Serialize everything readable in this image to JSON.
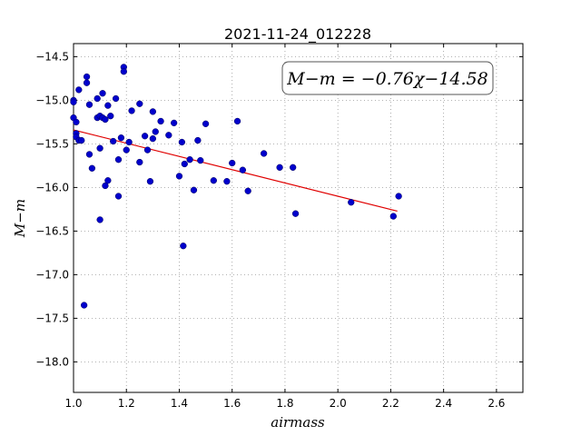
{
  "chart_data": {
    "type": "scatter",
    "title": "2021-11-24_012228",
    "xlabel": "airmass",
    "ylabel": "M−m",
    "xlim": [
      1.0,
      2.7
    ],
    "ylim": [
      -18.35,
      -14.35
    ],
    "x_ticks": [
      1.0,
      1.2,
      1.4,
      1.6,
      1.8,
      2.0,
      2.2,
      2.4,
      2.6
    ],
    "x_tick_labels": [
      "1.0",
      "1.2",
      "1.4",
      "1.6",
      "1.8",
      "2.0",
      "2.2",
      "2.4",
      "2.6"
    ],
    "y_ticks": [
      -14.5,
      -15.0,
      -15.5,
      -16.0,
      -16.5,
      -17.0,
      -17.5,
      -18.0
    ],
    "y_tick_labels": [
      "−14.5",
      "−15.0",
      "−15.5",
      "−16.0",
      "−16.5",
      "−17.0",
      "−17.5",
      "−18.0"
    ],
    "grid": true,
    "annotation": "M−m = −0.76χ−14.58",
    "fit_line": {
      "slope": -0.76,
      "intercept": -14.58,
      "x_range": [
        1.0,
        2.225
      ],
      "color": "#e00000"
    },
    "point_color": "#0000cc",
    "points": [
      [
        1.0,
        -15.0
      ],
      [
        1.0,
        -15.02
      ],
      [
        1.0,
        -15.2
      ],
      [
        1.01,
        -15.25
      ],
      [
        1.01,
        -15.38
      ],
      [
        1.01,
        -15.42
      ],
      [
        1.02,
        -14.88
      ],
      [
        1.02,
        -15.46
      ],
      [
        1.03,
        -15.46
      ],
      [
        1.04,
        -17.35
      ],
      [
        1.05,
        -14.8
      ],
      [
        1.05,
        -14.73
      ],
      [
        1.06,
        -15.05
      ],
      [
        1.06,
        -15.62
      ],
      [
        1.07,
        -15.78
      ],
      [
        1.09,
        -14.98
      ],
      [
        1.09,
        -15.2
      ],
      [
        1.1,
        -15.18
      ],
      [
        1.1,
        -15.55
      ],
      [
        1.1,
        -16.37
      ],
      [
        1.11,
        -14.92
      ],
      [
        1.11,
        -15.2
      ],
      [
        1.12,
        -15.22
      ],
      [
        1.12,
        -15.98
      ],
      [
        1.13,
        -15.92
      ],
      [
        1.13,
        -15.06
      ],
      [
        1.14,
        -15.18
      ],
      [
        1.15,
        -15.47
      ],
      [
        1.16,
        -14.98
      ],
      [
        1.17,
        -16.1
      ],
      [
        1.17,
        -15.68
      ],
      [
        1.18,
        -15.43
      ],
      [
        1.19,
        -14.62
      ],
      [
        1.19,
        -14.67
      ],
      [
        1.2,
        -15.57
      ],
      [
        1.21,
        -15.48
      ],
      [
        1.22,
        -15.12
      ],
      [
        1.25,
        -15.04
      ],
      [
        1.25,
        -15.71
      ],
      [
        1.27,
        -15.41
      ],
      [
        1.28,
        -15.57
      ],
      [
        1.29,
        -15.93
      ],
      [
        1.3,
        -15.44
      ],
      [
        1.3,
        -15.13
      ],
      [
        1.31,
        -15.36
      ],
      [
        1.33,
        -15.24
      ],
      [
        1.36,
        -15.4
      ],
      [
        1.38,
        -15.26
      ],
      [
        1.4,
        -15.87
      ],
      [
        1.41,
        -15.48
      ],
      [
        1.42,
        -15.73
      ],
      [
        1.415,
        -16.67
      ],
      [
        1.44,
        -15.68
      ],
      [
        1.455,
        -16.03
      ],
      [
        1.47,
        -15.46
      ],
      [
        1.48,
        -15.69
      ],
      [
        1.5,
        -15.27
      ],
      [
        1.53,
        -15.92
      ],
      [
        1.58,
        -15.93
      ],
      [
        1.6,
        -15.72
      ],
      [
        1.62,
        -15.24
      ],
      [
        1.64,
        -15.8
      ],
      [
        1.66,
        -16.04
      ],
      [
        1.72,
        -15.61
      ],
      [
        1.78,
        -15.77
      ],
      [
        1.83,
        -15.77
      ],
      [
        1.84,
        -16.3
      ],
      [
        2.05,
        -16.17
      ],
      [
        2.21,
        -16.33
      ],
      [
        2.23,
        -16.1
      ]
    ]
  }
}
